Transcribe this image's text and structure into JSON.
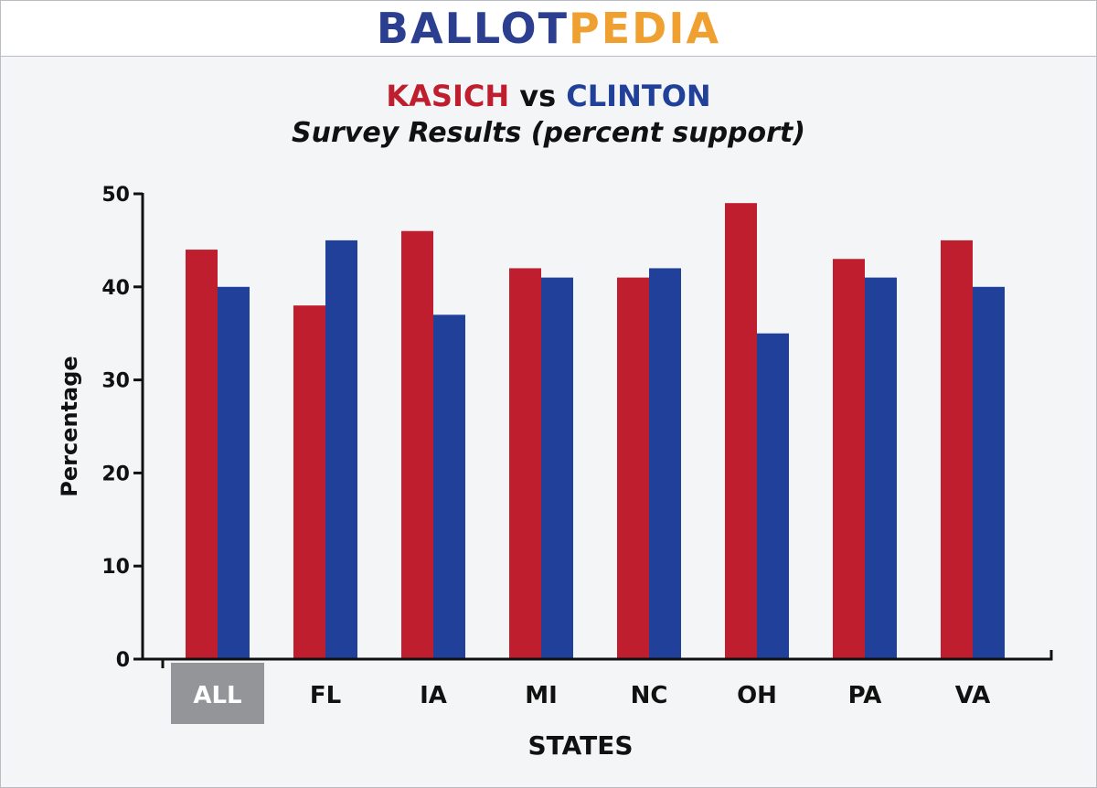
{
  "header": {
    "logo_part1": "BALLOT",
    "logo_part2": "PEDIA"
  },
  "colors": {
    "kasich": "#be1e2d",
    "clinton": "#21409a",
    "highlight_bg": "#939598",
    "logo_blue": "#2c3e8f",
    "logo_orange": "#f0a030"
  },
  "chart_data": {
    "type": "bar",
    "title_parts": [
      "KASICH",
      "vs",
      "CLINTON"
    ],
    "subtitle": "Survey Results (percent support)",
    "categories": [
      "ALL",
      "FL",
      "IA",
      "MI",
      "NC",
      "OH",
      "PA",
      "VA"
    ],
    "highlighted_category": "ALL",
    "series": [
      {
        "name": "KASICH",
        "values": [
          44,
          38,
          46,
          42,
          41,
          49,
          43,
          45
        ]
      },
      {
        "name": "CLINTON",
        "values": [
          40,
          45,
          37,
          41,
          42,
          35,
          41,
          40
        ]
      }
    ],
    "xlabel": "STATES",
    "ylabel": "Percentage",
    "ylim": [
      0,
      50
    ],
    "yticks": [
      "0",
      "10",
      "20",
      "30",
      "40",
      "50"
    ],
    "grid": false,
    "legend": "title"
  }
}
